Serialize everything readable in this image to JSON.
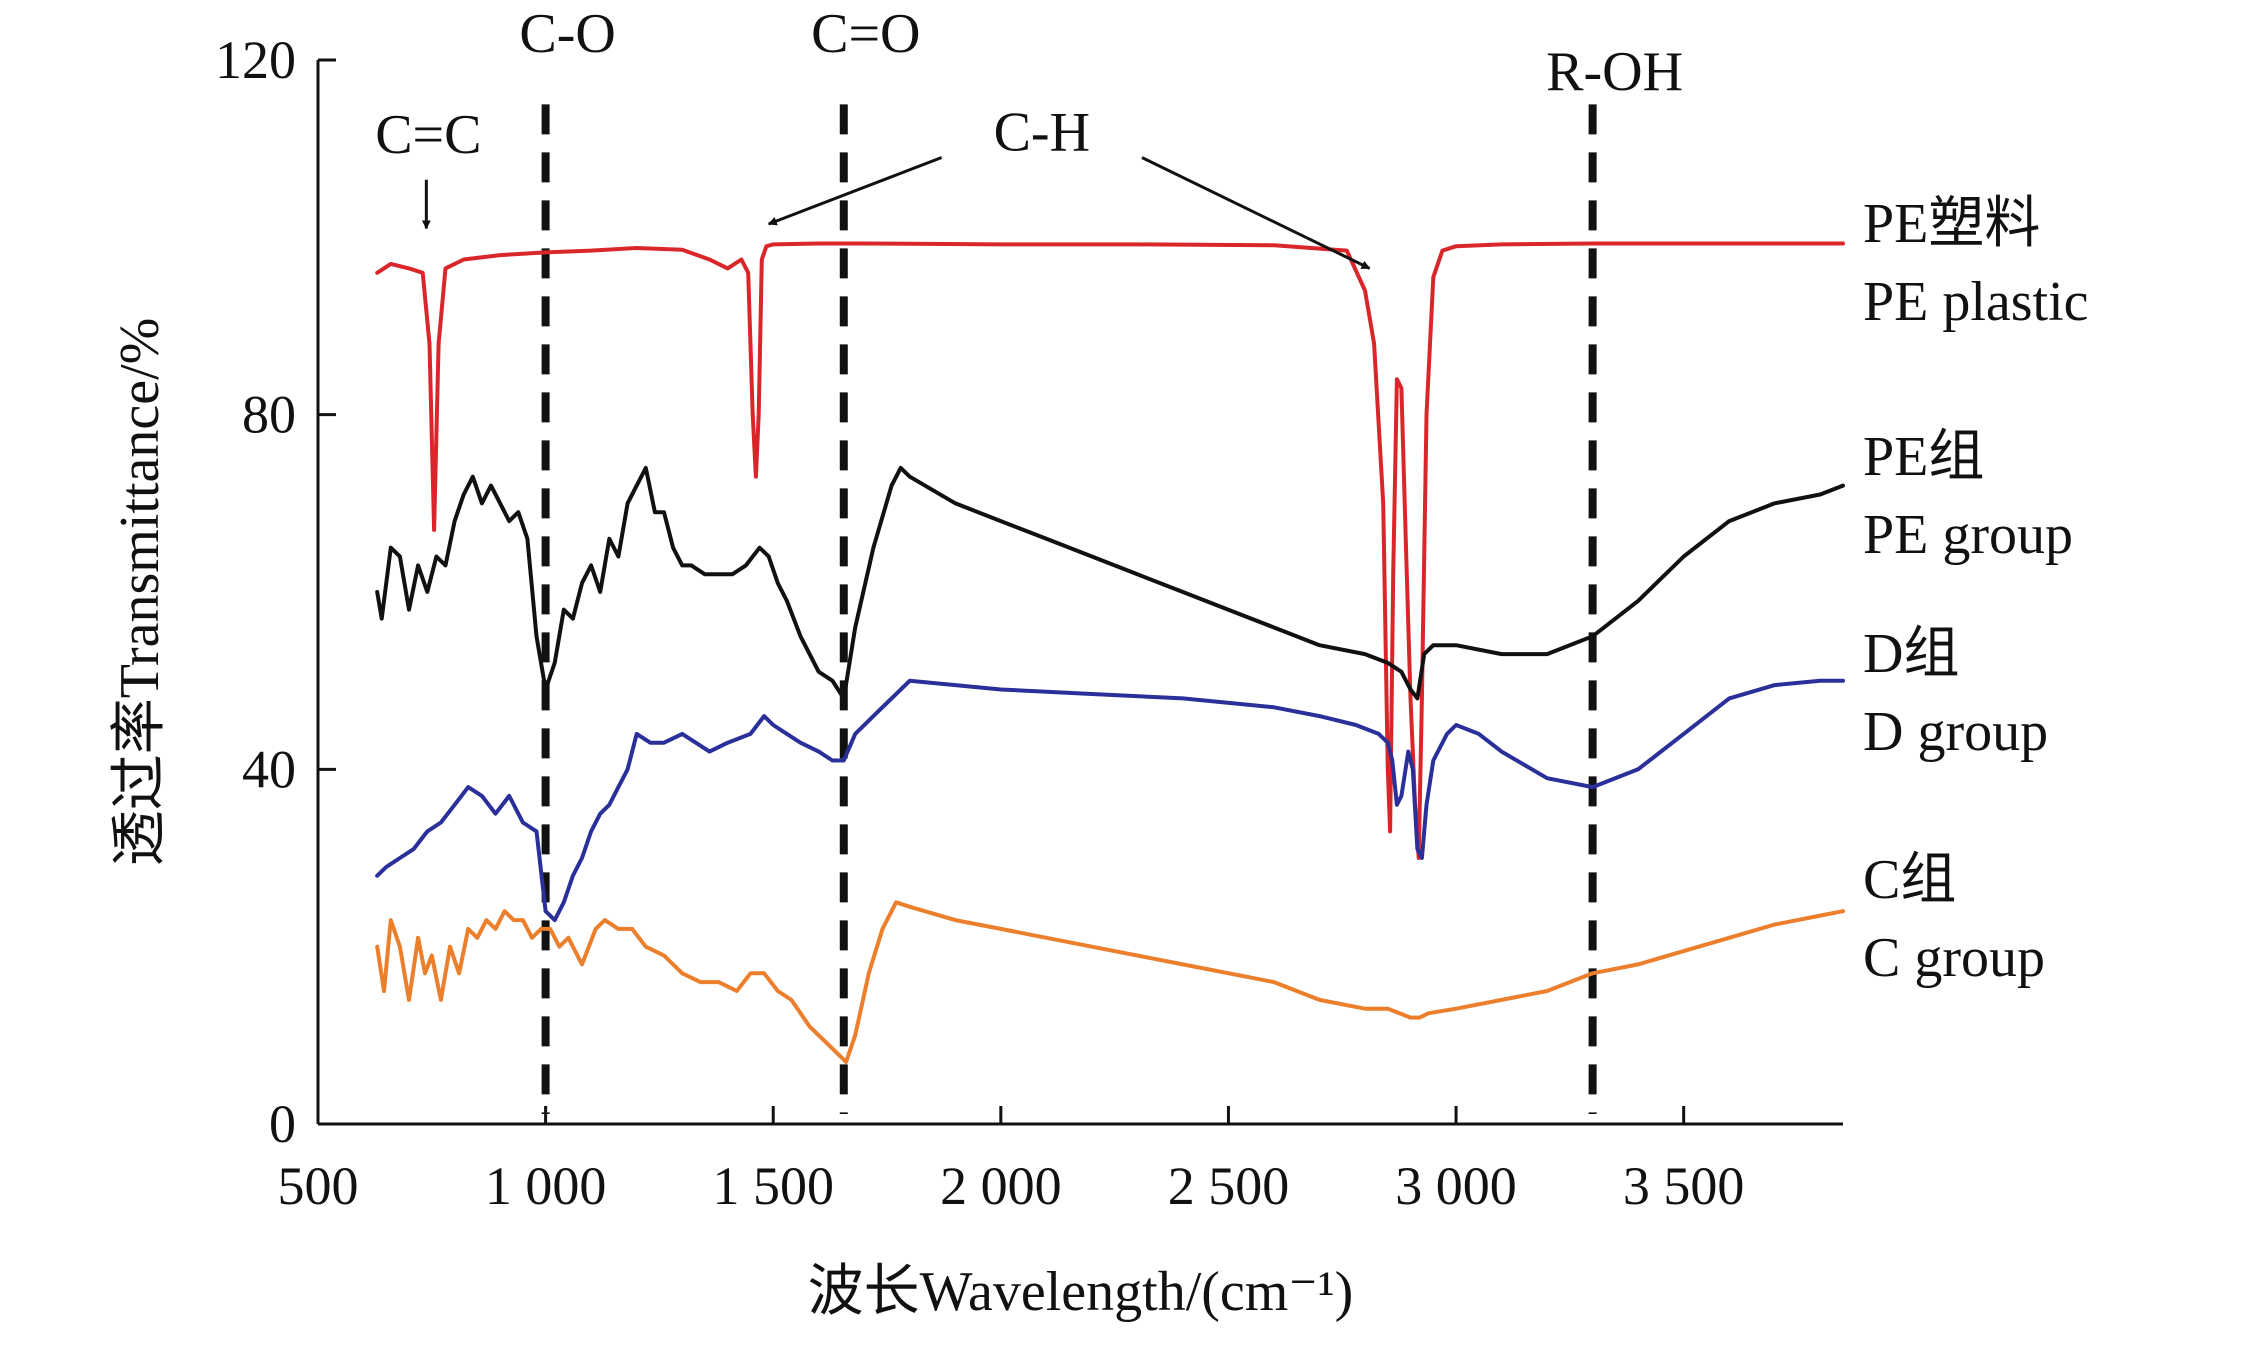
{
  "chart_data": {
    "type": "line",
    "xlabel": "波长Wavelength/(cm⁻¹)",
    "ylabel": "透过率Transmittance/%",
    "xlim": [
      500,
      3850
    ],
    "ylim": [
      0,
      120
    ],
    "xticks": [
      500,
      1000,
      1500,
      2000,
      2500,
      3000,
      3500
    ],
    "xtick_labels": [
      "500",
      "1 000",
      "1 500",
      "2 000",
      "2 500",
      "3 000",
      "3 500"
    ],
    "yticks": [
      0,
      40,
      80,
      120
    ],
    "ytick_labels": [
      "0",
      "40",
      "80",
      "120"
    ],
    "grid": false,
    "vlines": [
      {
        "x": 1000,
        "label": "C-O"
      },
      {
        "x": 1655,
        "label": "C=O"
      },
      {
        "x": 3300,
        "label": "R-OH"
      }
    ],
    "arrows": [
      {
        "label": "C=C",
        "from": [
          738,
          106.5
        ],
        "to": [
          738,
          101
        ]
      },
      {
        "label": "C-H",
        "from": [
          1870,
          109
        ],
        "to": [
          1490,
          101.5
        ]
      },
      {
        "label": "C-H",
        "from": [
          2310,
          109
        ],
        "to": [
          2810,
          96.5
        ]
      }
    ],
    "series": [
      {
        "name": "PE塑料",
        "name_en": "PE plastic",
        "color": "#d9262b",
        "x": [
          630,
          660,
          700,
          730,
          745,
          755,
          765,
          780,
          820,
          900,
          1000,
          1100,
          1200,
          1300,
          1360,
          1400,
          1430,
          1445,
          1455,
          1462,
          1468,
          1475,
          1485,
          1500,
          1600,
          1700,
          2000,
          2300,
          2600,
          2760,
          2800,
          2820,
          2840,
          2850,
          2855,
          2862,
          2870,
          2880,
          2890,
          2900,
          2910,
          2918,
          2925,
          2935,
          2950,
          2970,
          3000,
          3100,
          3300,
          3500,
          3700,
          3850
        ],
        "y": [
          96,
          97,
          96.5,
          96,
          88,
          67,
          88,
          96.5,
          97.5,
          98,
          98.3,
          98.5,
          98.8,
          98.6,
          97.5,
          96.5,
          97.5,
          96,
          80,
          73,
          80,
          97.5,
          99,
          99.2,
          99.3,
          99.3,
          99.2,
          99.2,
          99.1,
          98.5,
          94,
          88,
          70,
          40,
          33,
          62,
          84,
          83,
          65,
          48,
          36,
          30,
          48,
          80,
          95.5,
          98.5,
          99,
          99.2,
          99.3,
          99.3,
          99.3,
          99.3
        ]
      },
      {
        "name": "PE组",
        "name_en": "PE group",
        "color": "#111111",
        "x": [
          630,
          640,
          660,
          680,
          700,
          720,
          740,
          760,
          780,
          800,
          820,
          840,
          860,
          880,
          900,
          920,
          940,
          960,
          980,
          1000,
          1020,
          1040,
          1060,
          1080,
          1100,
          1120,
          1140,
          1160,
          1180,
          1200,
          1220,
          1240,
          1260,
          1280,
          1300,
          1320,
          1350,
          1380,
          1410,
          1440,
          1470,
          1490,
          1510,
          1530,
          1560,
          1600,
          1630,
          1655,
          1680,
          1720,
          1760,
          1780,
          1800,
          1900,
          2000,
          2100,
          2200,
          2300,
          2400,
          2500,
          2600,
          2700,
          2800,
          2850,
          2880,
          2900,
          2915,
          2930,
          2950,
          3000,
          3100,
          3200,
          3300,
          3400,
          3500,
          3600,
          3700,
          3800,
          3850
        ],
        "y": [
          60,
          57,
          65,
          64,
          58,
          63,
          60,
          64,
          63,
          68,
          71,
          73,
          70,
          72,
          70,
          68,
          69,
          66,
          55,
          49,
          52,
          58,
          57,
          61,
          63,
          60,
          66,
          64,
          70,
          72,
          74,
          69,
          69,
          65,
          63,
          63,
          62,
          62,
          62,
          63,
          65,
          64,
          61,
          59,
          55,
          51,
          50,
          48,
          56,
          65,
          72,
          74,
          73,
          70,
          68,
          66,
          64,
          62,
          60,
          58,
          56,
          54,
          53,
          52,
          51,
          49,
          48,
          53,
          54,
          54,
          53,
          53,
          55,
          59,
          64,
          68,
          70,
          71,
          72
        ]
      },
      {
        "name": "D组",
        "name_en": "D group",
        "color": "#2a2f9a",
        "x": [
          630,
          650,
          680,
          710,
          740,
          770,
          800,
          830,
          860,
          890,
          920,
          950,
          980,
          1000,
          1020,
          1040,
          1060,
          1080,
          1100,
          1120,
          1140,
          1160,
          1180,
          1200,
          1230,
          1260,
          1300,
          1330,
          1360,
          1400,
          1450,
          1480,
          1500,
          1530,
          1560,
          1600,
          1630,
          1655,
          1680,
          1720,
          1760,
          1800,
          1900,
          2000,
          2200,
          2400,
          2600,
          2700,
          2780,
          2830,
          2850,
          2860,
          2870,
          2880,
          2895,
          2905,
          2915,
          2925,
          2935,
          2950,
          2980,
          3000,
          3050,
          3100,
          3200,
          3300,
          3400,
          3500,
          3600,
          3700,
          3800,
          3850
        ],
        "y": [
          28,
          29,
          30,
          31,
          33,
          34,
          36,
          38,
          37,
          35,
          37,
          34,
          33,
          24,
          23,
          25,
          28,
          30,
          33,
          35,
          36,
          38,
          40,
          44,
          43,
          43,
          44,
          43,
          42,
          43,
          44,
          46,
          45,
          44,
          43,
          42,
          41,
          41,
          44,
          46,
          48,
          50,
          49.5,
          49,
          48.5,
          48,
          47,
          46,
          45,
          44,
          43,
          41,
          36,
          37,
          42,
          40,
          31,
          30,
          36,
          41,
          44,
          45,
          44,
          42,
          39,
          38,
          40,
          44,
          48,
          49.5,
          50,
          50
        ]
      },
      {
        "name": "C组",
        "name_en": "C group",
        "color": "#ec7f2c",
        "x": [
          630,
          645,
          660,
          680,
          700,
          720,
          735,
          750,
          770,
          790,
          810,
          830,
          850,
          870,
          890,
          910,
          930,
          950,
          970,
          990,
          1010,
          1030,
          1050,
          1080,
          1110,
          1130,
          1160,
          1190,
          1220,
          1260,
          1300,
          1340,
          1380,
          1420,
          1450,
          1480,
          1510,
          1540,
          1580,
          1620,
          1640,
          1660,
          1680,
          1710,
          1740,
          1770,
          1800,
          1900,
          2000,
          2200,
          2400,
          2600,
          2700,
          2800,
          2850,
          2900,
          2920,
          2940,
          3000,
          3100,
          3200,
          3300,
          3400,
          3500,
          3600,
          3700,
          3800,
          3850
        ],
        "y": [
          20,
          15,
          23,
          20,
          14,
          21,
          17,
          19,
          14,
          20,
          17,
          22,
          21,
          23,
          22,
          24,
          23,
          23,
          21,
          22,
          22,
          20,
          21,
          18,
          22,
          23,
          22,
          22,
          20,
          19,
          17,
          16,
          16,
          15,
          17,
          17,
          15,
          14,
          11,
          9,
          8,
          7,
          10,
          17,
          22,
          25,
          24.5,
          23,
          22,
          20,
          18,
          16,
          14,
          13,
          13,
          12,
          12,
          12.5,
          13,
          14,
          15,
          17,
          18,
          19.5,
          21,
          22.5,
          23.5,
          24
        ]
      }
    ]
  }
}
